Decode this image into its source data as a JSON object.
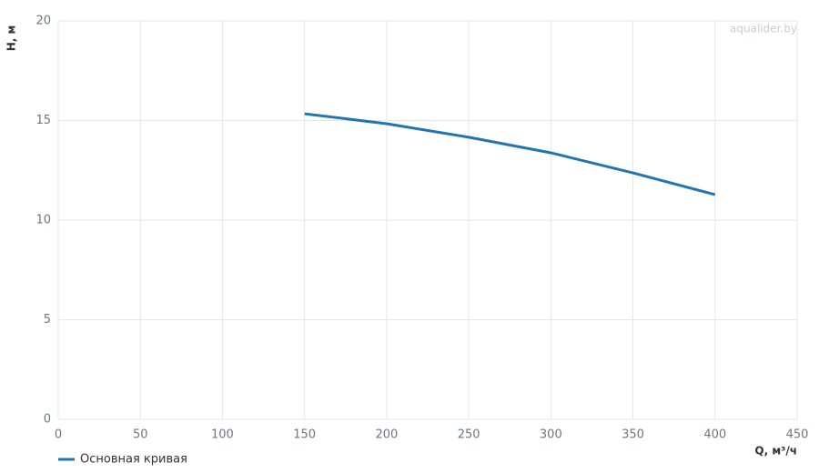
{
  "chart_data": {
    "type": "line",
    "y_label": "H, м",
    "x_label": "Q, м³/ч",
    "watermark": "aqualider.by",
    "x": [
      150,
      200,
      250,
      300,
      350,
      400
    ],
    "series": [
      {
        "name": "Основная кривая",
        "color": "#2275b0",
        "values": [
          15.34,
          14.84,
          14.16,
          13.38,
          12.37,
          11.28
        ]
      }
    ],
    "xlim": [
      0,
      450
    ],
    "ylim": [
      0,
      20
    ],
    "xticks": [
      0,
      50,
      100,
      150,
      200,
      250,
      300,
      350,
      400,
      450
    ],
    "yticks": [
      0,
      5,
      10,
      15,
      20
    ],
    "grid": true,
    "legend": "bottom-left"
  }
}
